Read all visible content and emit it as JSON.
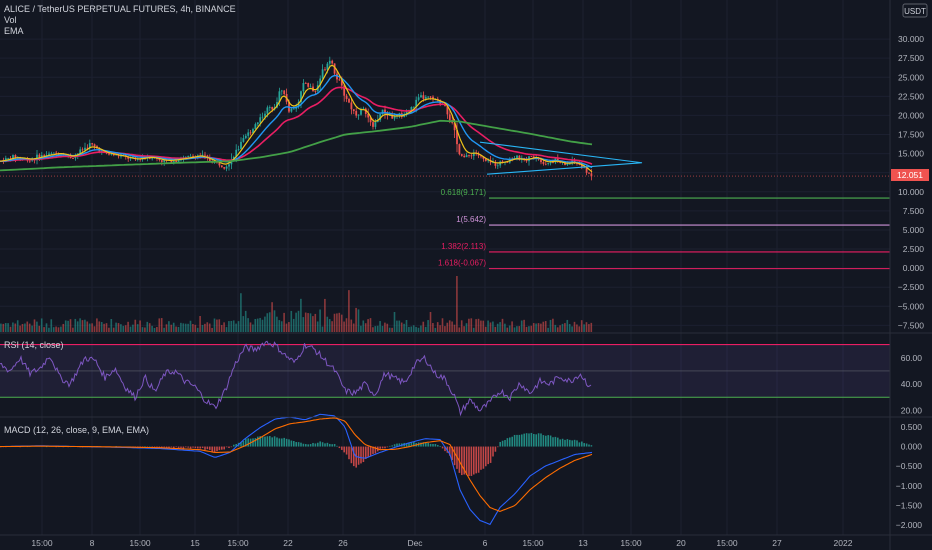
{
  "header": {
    "title": "ALICE / TetherUS PERPETUAL FUTURES, 4h, BINANCE",
    "ind1": "Vol",
    "ind2": "EMA",
    "currency": "USDT"
  },
  "price_axis": {
    "ticks": [
      "30.000",
      "27.500",
      "25.000",
      "22.500",
      "20.000",
      "17.500",
      "15.000",
      "10.000",
      "7.500",
      "5.000",
      "2.500",
      "0.000",
      "−2.500",
      "−5.000",
      "−7.500"
    ],
    "current_price": "12.051"
  },
  "rsi_panel": {
    "label": "RSI (14, close)",
    "ticks": [
      "60.00",
      "40.00",
      "20.00"
    ]
  },
  "macd_panel": {
    "label": "MACD (12, 26, close, 9, EMA, EMA)",
    "ticks": [
      "0.500",
      "0.000",
      "−0.500",
      "−1.000",
      "−1.500",
      "−2.000"
    ]
  },
  "time_axis": [
    "15:00",
    "8",
    "15:00",
    "15",
    "15:00",
    "22",
    "26",
    "Dec",
    "6",
    "15:00",
    "13",
    "15:00",
    "20",
    "15:00",
    "27",
    "2022"
  ],
  "fib_levels": [
    {
      "label": "0.618(9.171)",
      "value": 9.171,
      "color": "#4caf50"
    },
    {
      "label": "1(5.642)",
      "value": 5.642,
      "color": "#ce93d8"
    },
    {
      "label": "1.382(2.113)",
      "value": 2.113,
      "color": "#e91e63"
    },
    {
      "label": "1.618(-0.067)",
      "value": -0.067,
      "color": "#e91e63"
    }
  ],
  "colors": {
    "background": "#131722",
    "bull": "#26a69a",
    "bear": "#ef5350",
    "ema_fast": "#f0c419",
    "ema_mid": "#2196f3",
    "ema_slow": "#e91e63",
    "ema_long": "#43a047",
    "rsi": "#7e57c2",
    "macd": "#2962ff",
    "signal": "#ff6d00",
    "price_badge": "#ef5350"
  },
  "chart_data": {
    "type": "candlestick",
    "symbol": "ALICE / TetherUS PERPETUAL FUTURES",
    "timeframe": "4h",
    "price_range": [
      -8.5,
      32.5
    ],
    "last_price": 12.051,
    "price_path": [
      [
        0,
        14.0
      ],
      [
        15,
        14.6
      ],
      [
        30,
        14.2
      ],
      [
        45,
        14.8
      ],
      [
        60,
        15.1
      ],
      [
        72,
        14.5
      ],
      [
        90,
        16.2
      ],
      [
        105,
        15.0
      ],
      [
        120,
        14.7
      ],
      [
        135,
        14.2
      ],
      [
        150,
        14.6
      ],
      [
        165,
        14.0
      ],
      [
        180,
        14.3
      ],
      [
        200,
        14.8
      ],
      [
        215,
        13.8
      ],
      [
        225,
        13.4
      ],
      [
        235,
        15.0
      ],
      [
        245,
        17.0
      ],
      [
        255,
        18.8
      ],
      [
        265,
        20.5
      ],
      [
        275,
        21.4
      ],
      [
        282,
        23.6
      ],
      [
        290,
        20.4
      ],
      [
        298,
        21.8
      ],
      [
        305,
        24.4
      ],
      [
        315,
        23.0
      ],
      [
        322,
        25.6
      ],
      [
        330,
        27.6
      ],
      [
        338,
        24.6
      ],
      [
        346,
        22.4
      ],
      [
        355,
        20.2
      ],
      [
        365,
        20.8
      ],
      [
        372,
        18.3
      ],
      [
        382,
        20.6
      ],
      [
        392,
        19.8
      ],
      [
        402,
        20.0
      ],
      [
        412,
        21.0
      ],
      [
        420,
        22.4
      ],
      [
        432,
        22.2
      ],
      [
        445,
        21.4
      ],
      [
        452,
        18.8
      ],
      [
        458,
        15.6
      ],
      [
        465,
        14.4
      ],
      [
        475,
        15.2
      ],
      [
        485,
        14.0
      ],
      [
        495,
        13.6
      ],
      [
        505,
        14.0
      ],
      [
        515,
        14.5
      ],
      [
        525,
        14.1
      ],
      [
        535,
        14.7
      ],
      [
        545,
        13.7
      ],
      [
        555,
        14.1
      ],
      [
        565,
        13.6
      ],
      [
        575,
        13.9
      ],
      [
        585,
        13.0
      ],
      [
        592,
        12.051
      ]
    ],
    "ema_long_path": [
      [
        0,
        12.8
      ],
      [
        60,
        13.2
      ],
      [
        120,
        13.5
      ],
      [
        180,
        13.8
      ],
      [
        230,
        14.0
      ],
      [
        260,
        14.5
      ],
      [
        290,
        15.2
      ],
      [
        320,
        16.5
      ],
      [
        345,
        17.5
      ],
      [
        380,
        18.0
      ],
      [
        410,
        18.5
      ],
      [
        440,
        19.3
      ],
      [
        460,
        19.2
      ],
      [
        490,
        18.5
      ],
      [
        530,
        17.6
      ],
      [
        570,
        16.6
      ],
      [
        592,
        16.2
      ]
    ],
    "volume_range": [
      0,
      60
    ],
    "rsi_range": [
      15,
      75
    ],
    "rsi_levels": [
      70,
      30
    ],
    "rsi_path": [
      [
        0,
        55
      ],
      [
        10,
        50
      ],
      [
        20,
        60
      ],
      [
        30,
        48
      ],
      [
        40,
        52
      ],
      [
        50,
        62
      ],
      [
        60,
        45
      ],
      [
        70,
        40
      ],
      [
        85,
        60
      ],
      [
        95,
        58
      ],
      [
        105,
        45
      ],
      [
        115,
        52
      ],
      [
        125,
        38
      ],
      [
        135,
        30
      ],
      [
        145,
        45
      ],
      [
        155,
        34
      ],
      [
        165,
        48
      ],
      [
        175,
        50
      ],
      [
        185,
        42
      ],
      [
        195,
        38
      ],
      [
        205,
        28
      ],
      [
        215,
        22
      ],
      [
        225,
        35
      ],
      [
        235,
        55
      ],
      [
        245,
        68
      ],
      [
        255,
        66
      ],
      [
        265,
        72
      ],
      [
        275,
        70
      ],
      [
        285,
        62
      ],
      [
        295,
        56
      ],
      [
        305,
        70
      ],
      [
        315,
        66
      ],
      [
        325,
        58
      ],
      [
        335,
        50
      ],
      [
        345,
        35
      ],
      [
        355,
        33
      ],
      [
        365,
        40
      ],
      [
        375,
        32
      ],
      [
        385,
        48
      ],
      [
        395,
        44
      ],
      [
        405,
        41
      ],
      [
        415,
        55
      ],
      [
        425,
        60
      ],
      [
        435,
        48
      ],
      [
        445,
        44
      ],
      [
        455,
        30
      ],
      [
        460,
        18
      ],
      [
        470,
        28
      ],
      [
        480,
        20
      ],
      [
        490,
        26
      ],
      [
        500,
        35
      ],
      [
        510,
        30
      ],
      [
        520,
        41
      ],
      [
        530,
        33
      ],
      [
        540,
        42
      ],
      [
        550,
        40
      ],
      [
        560,
        46
      ],
      [
        570,
        42
      ],
      [
        580,
        48
      ],
      [
        592,
        36
      ]
    ],
    "macd_range": [
      -2.25,
      0.65
    ],
    "macd_path": [
      [
        0,
        0.0
      ],
      [
        40,
        0.02
      ],
      [
        80,
        0.0
      ],
      [
        120,
        -0.02
      ],
      [
        160,
        -0.05
      ],
      [
        200,
        -0.12
      ],
      [
        215,
        -0.28
      ],
      [
        230,
        -0.15
      ],
      [
        245,
        0.2
      ],
      [
        260,
        0.48
      ],
      [
        275,
        0.7
      ],
      [
        290,
        0.75
      ],
      [
        305,
        0.68
      ],
      [
        320,
        0.82
      ],
      [
        335,
        0.78
      ],
      [
        345,
        0.5
      ],
      [
        355,
        -0.25
      ],
      [
        365,
        -0.3
      ],
      [
        380,
        -0.15
      ],
      [
        395,
        -0.02
      ],
      [
        410,
        0.1
      ],
      [
        425,
        0.2
      ],
      [
        440,
        0.18
      ],
      [
        450,
        -0.2
      ],
      [
        460,
        -1.1
      ],
      [
        470,
        -1.6
      ],
      [
        480,
        -1.88
      ],
      [
        490,
        -1.98
      ],
      [
        500,
        -1.55
      ],
      [
        515,
        -1.2
      ],
      [
        530,
        -0.75
      ],
      [
        545,
        -0.5
      ],
      [
        560,
        -0.35
      ],
      [
        575,
        -0.2
      ],
      [
        592,
        -0.15
      ]
    ],
    "signal_path": [
      [
        0,
        0.0
      ],
      [
        40,
        0.01
      ],
      [
        80,
        0.0
      ],
      [
        120,
        -0.01
      ],
      [
        160,
        -0.03
      ],
      [
        200,
        -0.08
      ],
      [
        215,
        -0.15
      ],
      [
        230,
        -0.14
      ],
      [
        245,
        0.02
      ],
      [
        260,
        0.22
      ],
      [
        275,
        0.45
      ],
      [
        290,
        0.58
      ],
      [
        305,
        0.63
      ],
      [
        320,
        0.7
      ],
      [
        335,
        0.73
      ],
      [
        345,
        0.65
      ],
      [
        355,
        0.3
      ],
      [
        365,
        0.05
      ],
      [
        380,
        -0.08
      ],
      [
        395,
        -0.07
      ],
      [
        410,
        0.0
      ],
      [
        425,
        0.1
      ],
      [
        440,
        0.15
      ],
      [
        450,
        0.05
      ],
      [
        460,
        -0.4
      ],
      [
        470,
        -0.85
      ],
      [
        480,
        -1.25
      ],
      [
        490,
        -1.55
      ],
      [
        500,
        -1.65
      ],
      [
        515,
        -1.5
      ],
      [
        530,
        -1.1
      ],
      [
        545,
        -0.8
      ],
      [
        560,
        -0.55
      ],
      [
        575,
        -0.35
      ],
      [
        592,
        -0.2
      ]
    ]
  }
}
